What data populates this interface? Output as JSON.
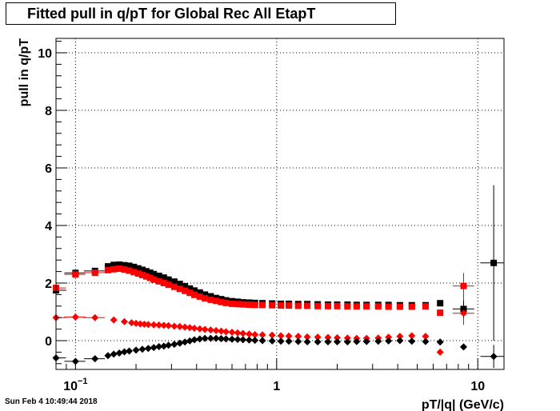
{
  "title": "Fitted pull in q/pT for Global Rec All EtapT",
  "timestamp": "Sun Feb  4 10:49:44 2018",
  "chart_data": {
    "type": "scatter",
    "title": "Fitted pull in q/pT for Global Rec All EtapT",
    "xlabel": "pT/|q| (GeV/c)",
    "ylabel": "pull in q/pT",
    "xscale": "log",
    "xlim": [
      0.08,
      13.5
    ],
    "ylim": [
      -1.0,
      10.5
    ],
    "x_tick_labels": [
      {
        "value": 0.1,
        "base": "10",
        "exp": "−1"
      },
      {
        "value": 1,
        "base": "1",
        "exp": ""
      },
      {
        "value": 10,
        "base": "10",
        "exp": ""
      }
    ],
    "y_ticks": [
      0,
      2,
      4,
      6,
      8,
      10
    ],
    "grid": true,
    "series": [
      {
        "color": "#000000",
        "marker": "square",
        "points": [
          [
            0.08,
            1.75
          ],
          [
            0.1,
            2.35
          ],
          [
            0.125,
            2.42
          ],
          [
            0.145,
            2.58
          ],
          [
            0.155,
            2.63
          ],
          [
            0.165,
            2.64
          ],
          [
            0.175,
            2.62
          ],
          [
            0.185,
            2.6
          ],
          [
            0.195,
            2.56
          ],
          [
            0.205,
            2.51
          ],
          [
            0.215,
            2.46
          ],
          [
            0.225,
            2.41
          ],
          [
            0.235,
            2.36
          ],
          [
            0.245,
            2.31
          ],
          [
            0.26,
            2.25
          ],
          [
            0.275,
            2.19
          ],
          [
            0.29,
            2.12
          ],
          [
            0.31,
            2.05
          ],
          [
            0.33,
            1.97
          ],
          [
            0.35,
            1.89
          ],
          [
            0.37,
            1.81
          ],
          [
            0.39,
            1.74
          ],
          [
            0.415,
            1.67
          ],
          [
            0.44,
            1.6
          ],
          [
            0.47,
            1.54
          ],
          [
            0.5,
            1.48
          ],
          [
            0.53,
            1.44
          ],
          [
            0.56,
            1.4
          ],
          [
            0.6,
            1.37
          ],
          [
            0.64,
            1.35
          ],
          [
            0.68,
            1.33
          ],
          [
            0.73,
            1.32
          ],
          [
            0.78,
            1.31
          ],
          [
            0.85,
            1.3
          ],
          [
            0.95,
            1.29
          ],
          [
            1.05,
            1.28
          ],
          [
            1.15,
            1.28
          ],
          [
            1.28,
            1.27
          ],
          [
            1.42,
            1.27
          ],
          [
            1.6,
            1.26
          ],
          [
            1.8,
            1.25
          ],
          [
            2.0,
            1.25
          ],
          [
            2.25,
            1.25
          ],
          [
            2.5,
            1.24
          ],
          [
            2.8,
            1.24
          ],
          [
            3.2,
            1.24
          ],
          [
            3.6,
            1.24
          ],
          [
            4.1,
            1.23
          ],
          [
            4.7,
            1.23
          ],
          [
            5.5,
            1.23
          ],
          [
            6.5,
            1.3
          ],
          [
            8.5,
            1.1
          ],
          [
            12,
            2.7
          ]
        ]
      },
      {
        "color": "#ff0000",
        "marker": "square",
        "points": [
          [
            0.08,
            1.83
          ],
          [
            0.1,
            2.3
          ],
          [
            0.125,
            2.36
          ],
          [
            0.145,
            2.45
          ],
          [
            0.155,
            2.48
          ],
          [
            0.165,
            2.5
          ],
          [
            0.175,
            2.47
          ],
          [
            0.185,
            2.43
          ],
          [
            0.195,
            2.38
          ],
          [
            0.205,
            2.33
          ],
          [
            0.215,
            2.28
          ],
          [
            0.225,
            2.23
          ],
          [
            0.235,
            2.18
          ],
          [
            0.245,
            2.12
          ],
          [
            0.26,
            2.06
          ],
          [
            0.275,
            2.0
          ],
          [
            0.29,
            1.94
          ],
          [
            0.31,
            1.87
          ],
          [
            0.33,
            1.8
          ],
          [
            0.35,
            1.73
          ],
          [
            0.37,
            1.66
          ],
          [
            0.39,
            1.59
          ],
          [
            0.415,
            1.53
          ],
          [
            0.44,
            1.47
          ],
          [
            0.47,
            1.42
          ],
          [
            0.5,
            1.38
          ],
          [
            0.53,
            1.34
          ],
          [
            0.56,
            1.31
          ],
          [
            0.6,
            1.28
          ],
          [
            0.64,
            1.27
          ],
          [
            0.68,
            1.26
          ],
          [
            0.73,
            1.25
          ],
          [
            0.78,
            1.24
          ],
          [
            0.85,
            1.24
          ],
          [
            0.95,
            1.23
          ],
          [
            1.05,
            1.22
          ],
          [
            1.15,
            1.22
          ],
          [
            1.28,
            1.21
          ],
          [
            1.42,
            1.21
          ],
          [
            1.6,
            1.2
          ],
          [
            1.8,
            1.2
          ],
          [
            2.0,
            1.2
          ],
          [
            2.25,
            1.19
          ],
          [
            2.5,
            1.19
          ],
          [
            2.8,
            1.19
          ],
          [
            3.2,
            1.19
          ],
          [
            3.6,
            1.18
          ],
          [
            4.1,
            1.18
          ],
          [
            4.7,
            1.18
          ],
          [
            5.5,
            1.19
          ],
          [
            6.5,
            0.97
          ],
          [
            8.5,
            1.9
          ]
        ]
      },
      {
        "color": "#ff0000",
        "marker": "diamond",
        "points": [
          [
            0.08,
            0.8
          ],
          [
            0.1,
            0.82
          ],
          [
            0.125,
            0.8
          ],
          [
            0.155,
            0.72
          ],
          [
            0.175,
            0.66
          ],
          [
            0.19,
            0.62
          ],
          [
            0.2,
            0.6
          ],
          [
            0.21,
            0.58
          ],
          [
            0.22,
            0.57
          ],
          [
            0.23,
            0.56
          ],
          [
            0.245,
            0.55
          ],
          [
            0.26,
            0.54
          ],
          [
            0.275,
            0.53
          ],
          [
            0.29,
            0.52
          ],
          [
            0.31,
            0.5
          ],
          [
            0.33,
            0.49
          ],
          [
            0.35,
            0.47
          ],
          [
            0.37,
            0.45
          ],
          [
            0.39,
            0.43
          ],
          [
            0.415,
            0.41
          ],
          [
            0.44,
            0.39
          ],
          [
            0.47,
            0.37
          ],
          [
            0.5,
            0.35
          ],
          [
            0.53,
            0.33
          ],
          [
            0.56,
            0.31
          ],
          [
            0.6,
            0.29
          ],
          [
            0.64,
            0.27
          ],
          [
            0.68,
            0.25
          ],
          [
            0.73,
            0.23
          ],
          [
            0.78,
            0.21
          ],
          [
            0.85,
            0.2
          ],
          [
            0.95,
            0.19
          ],
          [
            1.05,
            0.17
          ],
          [
            1.15,
            0.16
          ],
          [
            1.28,
            0.15
          ],
          [
            1.42,
            0.13
          ],
          [
            1.6,
            0.12
          ],
          [
            1.8,
            0.11
          ],
          [
            2.0,
            0.1
          ],
          [
            2.25,
            0.09
          ],
          [
            2.5,
            0.08
          ],
          [
            2.8,
            0.08
          ],
          [
            3.2,
            0.09
          ],
          [
            3.6,
            0.12
          ],
          [
            4.1,
            0.15
          ],
          [
            4.7,
            0.17
          ],
          [
            5.5,
            0.15
          ],
          [
            6.5,
            -0.4
          ],
          [
            8.5,
            0.95
          ]
        ]
      },
      {
        "color": "#000000",
        "marker": "diamond",
        "points": [
          [
            0.08,
            -0.6
          ],
          [
            0.1,
            -0.72
          ],
          [
            0.125,
            -0.63
          ],
          [
            0.145,
            -0.52
          ],
          [
            0.155,
            -0.47
          ],
          [
            0.165,
            -0.43
          ],
          [
            0.175,
            -0.39
          ],
          [
            0.185,
            -0.36
          ],
          [
            0.2,
            -0.33
          ],
          [
            0.215,
            -0.3
          ],
          [
            0.23,
            -0.27
          ],
          [
            0.245,
            -0.24
          ],
          [
            0.26,
            -0.21
          ],
          [
            0.275,
            -0.19
          ],
          [
            0.29,
            -0.16
          ],
          [
            0.31,
            -0.13
          ],
          [
            0.33,
            -0.09
          ],
          [
            0.35,
            -0.05
          ],
          [
            0.37,
            -0.01
          ],
          [
            0.39,
            0.03
          ],
          [
            0.415,
            0.06
          ],
          [
            0.44,
            0.08
          ],
          [
            0.47,
            0.08
          ],
          [
            0.5,
            0.08
          ],
          [
            0.53,
            0.07
          ],
          [
            0.56,
            0.06
          ],
          [
            0.6,
            0.05
          ],
          [
            0.64,
            0.04
          ],
          [
            0.68,
            0.03
          ],
          [
            0.73,
            0.02
          ],
          [
            0.78,
            0.01
          ],
          [
            0.85,
            0.0
          ],
          [
            0.95,
            -0.01
          ],
          [
            1.05,
            -0.02
          ],
          [
            1.15,
            -0.02
          ],
          [
            1.28,
            -0.03
          ],
          [
            1.42,
            -0.04
          ],
          [
            1.6,
            -0.04
          ],
          [
            1.8,
            -0.04
          ],
          [
            2.0,
            -0.04
          ],
          [
            2.25,
            -0.04
          ],
          [
            2.5,
            -0.03
          ],
          [
            2.8,
            -0.03
          ],
          [
            3.2,
            -0.02
          ],
          [
            3.6,
            -0.01
          ],
          [
            4.1,
            0.0
          ],
          [
            4.7,
            -0.02
          ],
          [
            5.5,
            -0.03
          ],
          [
            6.5,
            -0.05
          ],
          [
            8.5,
            -0.22
          ],
          [
            12,
            -0.55
          ]
        ]
      }
    ],
    "error_bars": [
      {
        "x": 12,
        "y": 2.7,
        "ylow": 0.0,
        "yhigh": 5.4,
        "xlow": 10.3,
        "xhigh": 13.5,
        "color": "#000000"
      },
      {
        "x": 12,
        "y": -0.55,
        "ylow": -0.95,
        "yhigh": -0.15,
        "xlow": 10.3,
        "xhigh": 13.5,
        "color": "#000000"
      },
      {
        "x": 8.5,
        "y": 1.9,
        "ylow": 1.3,
        "yhigh": 2.35,
        "xlow": 7.5,
        "xhigh": 9.6,
        "color": "#ff0000"
      },
      {
        "x": 8.5,
        "y": 0.95,
        "ylow": 0.55,
        "yhigh": 1.3,
        "xlow": 7.5,
        "xhigh": 9.6,
        "color": "#ff0000"
      },
      {
        "x": 8.5,
        "y": 1.1,
        "ylow": 0.8,
        "yhigh": 1.4,
        "xlow": 7.5,
        "xhigh": 9.6,
        "color": "#000000"
      },
      {
        "x": 0.08,
        "y": 1.75,
        "ylow": 1.55,
        "yhigh": 2.0,
        "xlow": 0.08,
        "xhigh": 0.09,
        "color": "#000000"
      }
    ]
  }
}
